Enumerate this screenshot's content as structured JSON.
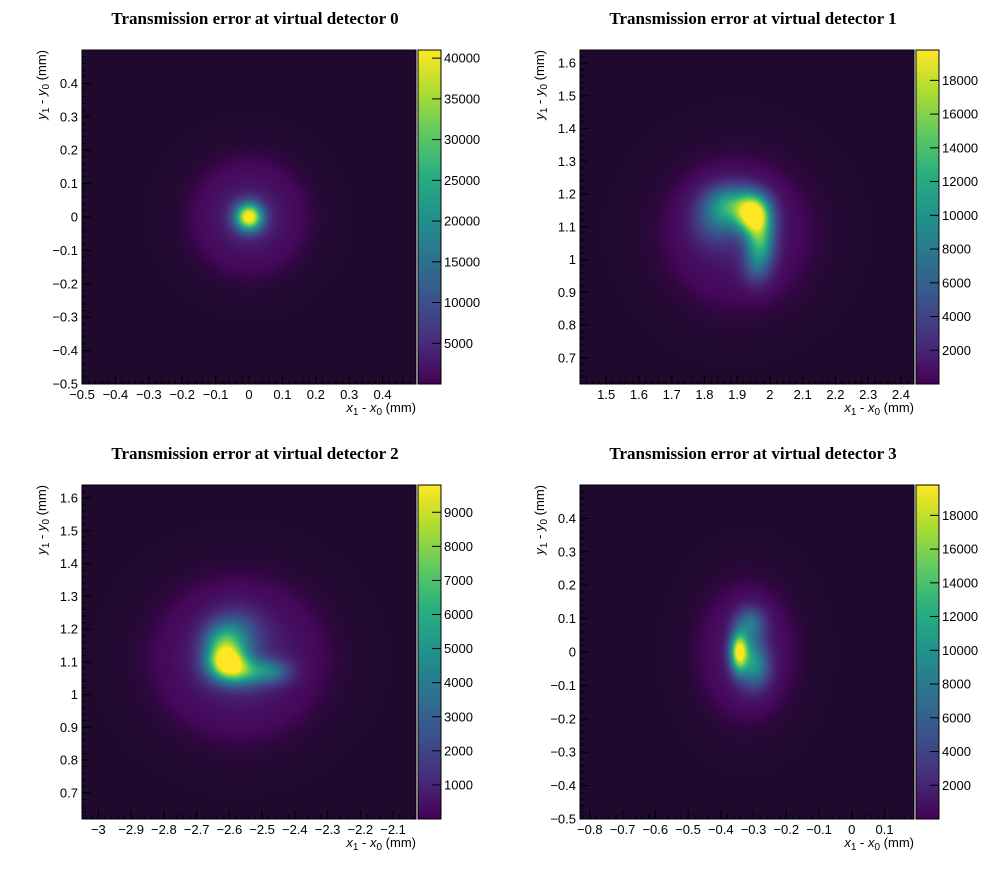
{
  "colormap": [
    "#440154",
    "#472d7b",
    "#3b528b",
    "#2c728e",
    "#21918c",
    "#28ae80",
    "#5ec962",
    "#addc30",
    "#fde725"
  ],
  "background_color": "#1f0a2e",
  "chart_data": [
    {
      "type": "heatmap",
      "title": "Transmission error at virtual detector 0",
      "xlabel": {
        "var": "x",
        "sub1": "1",
        "sub0": "0",
        "unit": "(mm)"
      },
      "ylabel": {
        "var": "y",
        "sub1": "1",
        "sub0": "0",
        "unit": "(mm)"
      },
      "xlim": [
        -0.5,
        0.5
      ],
      "ylim": [
        -0.5,
        0.5
      ],
      "xticks": [
        -0.5,
        -0.4,
        -0.3,
        -0.2,
        -0.1,
        0,
        0.1,
        0.2,
        0.3,
        0.4
      ],
      "xtick_labels": [
        "−0.5",
        "−0.4",
        "−0.3",
        "−0.2",
        "−0.1",
        "0",
        "0.1",
        "0.2",
        "0.3",
        "0.4"
      ],
      "yticks": [
        -0.5,
        -0.4,
        -0.3,
        -0.2,
        -0.1,
        0,
        0.1,
        0.2,
        0.3,
        0.4
      ],
      "ytick_labels": [
        "−0.5",
        "−0.4",
        "−0.3",
        "−0.2",
        "−0.1",
        "0",
        "0.1",
        "0.2",
        "0.3",
        "0.4"
      ],
      "zlim": [
        0,
        41000
      ],
      "zticks": [
        5000,
        10000,
        15000,
        20000,
        25000,
        30000,
        35000,
        40000
      ],
      "ztick_labels": [
        "5000",
        "10000",
        "15000",
        "20000",
        "25000",
        "30000",
        "35000",
        "40000"
      ],
      "blobs": [
        {
          "x": 0.0,
          "y": 0.0,
          "sx": 0.028,
          "sy": 0.028,
          "peak": 41000
        },
        {
          "x": 0.0,
          "y": 0.0,
          "sx": 0.09,
          "sy": 0.09,
          "peak": 4000
        }
      ]
    },
    {
      "type": "heatmap",
      "title": "Transmission error at virtual detector 1",
      "xlabel": {
        "var": "x",
        "sub1": "1",
        "sub0": "0",
        "unit": "(mm)"
      },
      "ylabel": {
        "var": "y",
        "sub1": "1",
        "sub0": "0",
        "unit": "(mm)"
      },
      "xlim": [
        1.42,
        2.44
      ],
      "ylim": [
        0.62,
        1.64
      ],
      "xticks": [
        1.5,
        1.6,
        1.7,
        1.8,
        1.9,
        2.0,
        2.1,
        2.2,
        2.3,
        2.4
      ],
      "xtick_labels": [
        "1.5",
        "1.6",
        "1.7",
        "1.8",
        "1.9",
        "2",
        "2.1",
        "2.2",
        "2.3",
        "2.4"
      ],
      "yticks": [
        0.7,
        0.8,
        0.9,
        1.0,
        1.1,
        1.2,
        1.3,
        1.4,
        1.5,
        1.6
      ],
      "ytick_labels": [
        "0.7",
        "0.8",
        "0.9",
        "1",
        "1.1",
        "1.2",
        "1.3",
        "1.4",
        "1.5",
        "1.6"
      ],
      "zlim": [
        0,
        19800
      ],
      "zticks": [
        2000,
        4000,
        6000,
        8000,
        10000,
        12000,
        14000,
        16000,
        18000
      ],
      "ztick_labels": [
        "2000",
        "4000",
        "6000",
        "8000",
        "10000",
        "12000",
        "14000",
        "16000",
        "18000"
      ],
      "blobs": [
        {
          "x": 1.95,
          "y": 1.14,
          "sx": 0.035,
          "sy": 0.04,
          "peak": 19000
        },
        {
          "x": 1.97,
          "y": 1.06,
          "sx": 0.03,
          "sy": 0.05,
          "peak": 11000
        },
        {
          "x": 1.88,
          "y": 1.17,
          "sx": 0.05,
          "sy": 0.04,
          "peak": 9000
        },
        {
          "x": 1.84,
          "y": 1.12,
          "sx": 0.05,
          "sy": 0.05,
          "peak": 4500
        },
        {
          "x": 1.96,
          "y": 0.98,
          "sx": 0.03,
          "sy": 0.04,
          "peak": 4000
        },
        {
          "x": 1.9,
          "y": 1.08,
          "sx": 0.12,
          "sy": 0.12,
          "peak": 1600
        }
      ]
    },
    {
      "type": "heatmap",
      "title": "Transmission error at virtual detector 2",
      "xlabel": {
        "var": "x",
        "sub1": "1",
        "sub0": "0",
        "unit": "(mm)"
      },
      "ylabel": {
        "var": "y",
        "sub1": "1",
        "sub0": "0",
        "unit": "(mm)"
      },
      "xlim": [
        -3.05,
        -2.03
      ],
      "ylim": [
        0.62,
        1.64
      ],
      "xticks": [
        -3.0,
        -2.9,
        -2.8,
        -2.7,
        -2.6,
        -2.5,
        -2.4,
        -2.3,
        -2.2,
        -2.1
      ],
      "xtick_labels": [
        "−3",
        "−2.9",
        "−2.8",
        "−2.7",
        "−2.6",
        "−2.5",
        "−2.4",
        "−2.3",
        "−2.2",
        "−2.1"
      ],
      "yticks": [
        0.7,
        0.8,
        0.9,
        1.0,
        1.1,
        1.2,
        1.3,
        1.4,
        1.5,
        1.6
      ],
      "ytick_labels": [
        "0.7",
        "0.8",
        "0.9",
        "1",
        "1.1",
        "1.2",
        "1.3",
        "1.4",
        "1.5",
        "1.6"
      ],
      "zlim": [
        0,
        9800
      ],
      "zticks": [
        1000,
        2000,
        3000,
        4000,
        5000,
        6000,
        7000,
        8000,
        9000
      ],
      "ztick_labels": [
        "1000",
        "2000",
        "3000",
        "4000",
        "5000",
        "6000",
        "7000",
        "8000",
        "9000"
      ],
      "blobs": [
        {
          "x": -2.61,
          "y": 1.1,
          "sx": 0.04,
          "sy": 0.035,
          "peak": 8000
        },
        {
          "x": -2.56,
          "y": 1.07,
          "sx": 0.05,
          "sy": 0.03,
          "peak": 4500
        },
        {
          "x": -2.47,
          "y": 1.07,
          "sx": 0.04,
          "sy": 0.025,
          "peak": 2800
        },
        {
          "x": -2.62,
          "y": 1.16,
          "sx": 0.04,
          "sy": 0.04,
          "peak": 3500
        },
        {
          "x": -2.58,
          "y": 1.18,
          "sx": 0.05,
          "sy": 0.05,
          "peak": 2500
        },
        {
          "x": -2.57,
          "y": 1.11,
          "sx": 0.13,
          "sy": 0.12,
          "peak": 1200
        }
      ]
    },
    {
      "type": "heatmap",
      "title": "Transmission error at virtual detector 3",
      "xlabel": {
        "var": "x",
        "sub1": "1",
        "sub0": "0",
        "unit": "(mm)"
      },
      "ylabel": {
        "var": "y",
        "sub1": "1",
        "sub0": "0",
        "unit": "(mm)"
      },
      "xlim": [
        -0.83,
        0.19
      ],
      "ylim": [
        -0.5,
        0.5
      ],
      "xticks": [
        -0.8,
        -0.7,
        -0.6,
        -0.5,
        -0.4,
        -0.3,
        -0.2,
        -0.1,
        0,
        0.1
      ],
      "xtick_labels": [
        "−0.8",
        "−0.7",
        "−0.6",
        "−0.5",
        "−0.4",
        "−0.3",
        "−0.2",
        "−0.1",
        "0",
        "0.1"
      ],
      "yticks": [
        -0.5,
        -0.4,
        -0.3,
        -0.2,
        -0.1,
        0,
        0.1,
        0.2,
        0.3,
        0.4
      ],
      "ytick_labels": [
        "−0.5",
        "−0.4",
        "−0.3",
        "−0.2",
        "−0.1",
        "0",
        "0.1",
        "0.2",
        "0.3",
        "0.4"
      ],
      "zlim": [
        0,
        19800
      ],
      "zticks": [
        2000,
        4000,
        6000,
        8000,
        10000,
        12000,
        14000,
        16000,
        18000
      ],
      "ztick_labels": [
        "2000",
        "4000",
        "6000",
        "8000",
        "10000",
        "12000",
        "14000",
        "16000",
        "18000"
      ],
      "blobs": [
        {
          "x": -0.345,
          "y": 0.0,
          "sx": 0.018,
          "sy": 0.04,
          "peak": 17000
        },
        {
          "x": -0.31,
          "y": 0.0,
          "sx": 0.03,
          "sy": 0.06,
          "peak": 6000
        },
        {
          "x": -0.31,
          "y": 0.09,
          "sx": 0.03,
          "sy": 0.03,
          "peak": 5000
        },
        {
          "x": -0.29,
          "y": -0.05,
          "sx": 0.03,
          "sy": 0.04,
          "peak": 5000
        },
        {
          "x": -0.32,
          "y": 0.0,
          "sx": 0.08,
          "sy": 0.11,
          "peak": 1500
        }
      ]
    }
  ]
}
